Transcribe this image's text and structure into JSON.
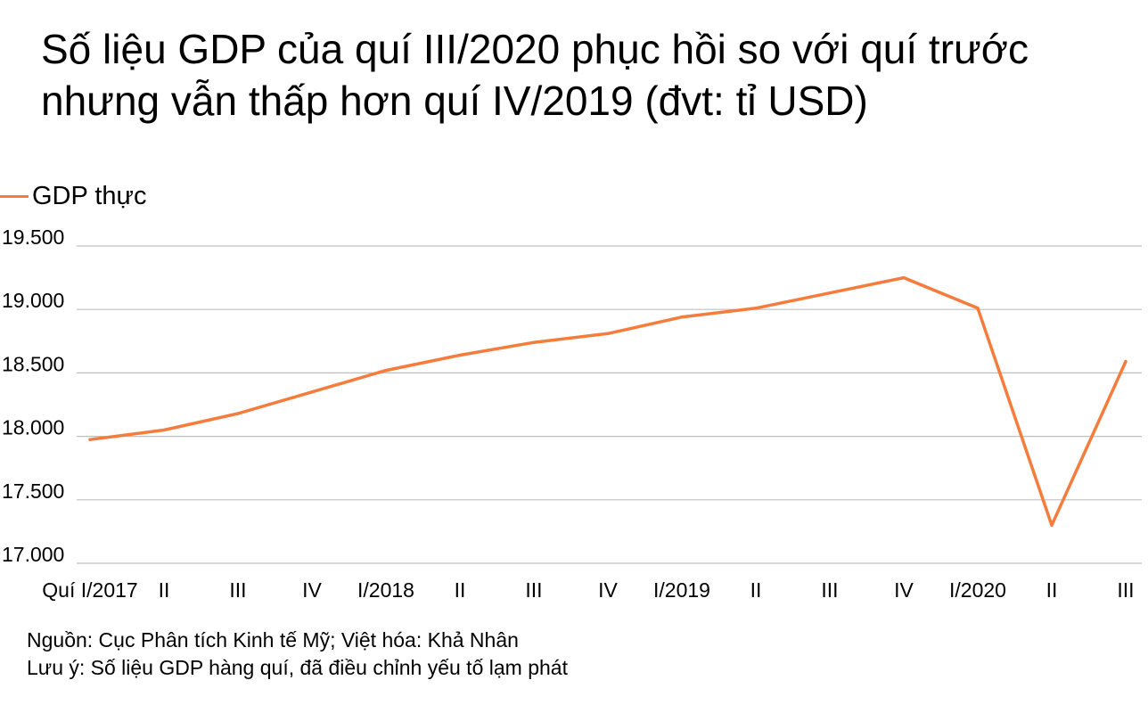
{
  "title": "Số liệu GDP của quí III/2020 phục hồi so với quí trước nhưng vẫn thấp hơn quí IV/2019 (đvt: tỉ USD)",
  "legend": {
    "label": "GDP thực",
    "color": "#F47C3C"
  },
  "source_note": "Nguồn: Cục Phân tích Kinh tế Mỹ; Việt hóa: Khả Nhân",
  "caveat_note": "Lưu ý: Số liệu GDP hàng quí, đã điều chỉnh yếu tố lạm phát",
  "chart_data": {
    "type": "line",
    "title": "Số liệu GDP của quí III/2020 phục hồi so với quí trước nhưng vẫn thấp hơn quí IV/2019 (đvt: tỉ USD)",
    "xlabel": "",
    "ylabel": "",
    "categories": [
      "Quí I/2017",
      "II",
      "III",
      "IV",
      "I/2018",
      "II",
      "III",
      "IV",
      "I/2019",
      "II",
      "III",
      "IV",
      "I/2020",
      "II",
      "III"
    ],
    "y_tick_labels": [
      "17.000",
      "17.500",
      "18.000",
      "18.500",
      "19.000",
      "19.500"
    ],
    "y_ticks": [
      17000,
      17500,
      18000,
      18500,
      19000,
      19500
    ],
    "ylim": [
      17000,
      19500
    ],
    "grid": true,
    "legend_position": "top-left",
    "line_color": "#F47C3C",
    "grid_color": "#BFBFBF",
    "series": [
      {
        "name": "GDP thực",
        "values": [
          17975,
          18050,
          18180,
          18350,
          18520,
          18640,
          18740,
          18810,
          18940,
          19010,
          19130,
          19250,
          19010,
          17300,
          18590
        ]
      }
    ]
  }
}
